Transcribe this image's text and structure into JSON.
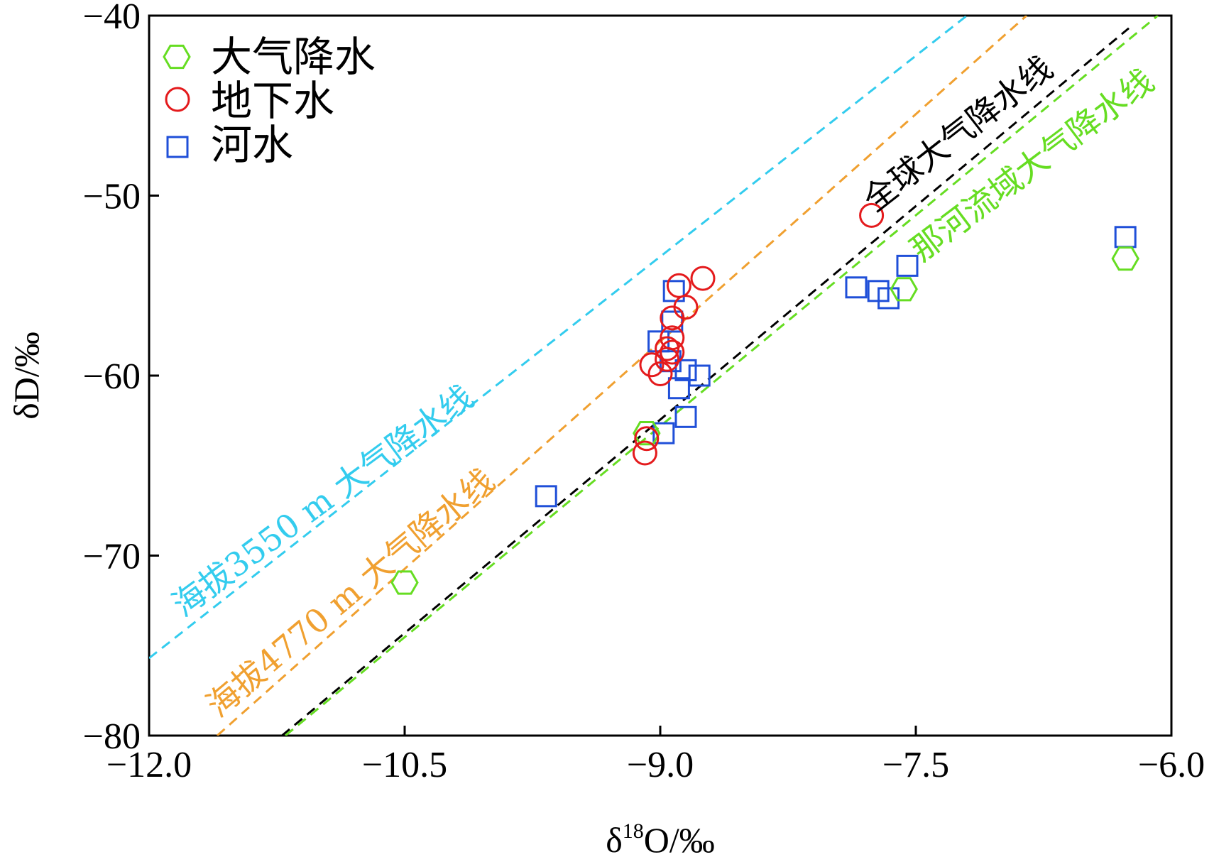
{
  "chart_data": {
    "type": "scatter",
    "xlabel": "δ¹⁸O/‰",
    "xlabel_main": "δ",
    "xlabel_sup": "18",
    "xlabel_rest": "O/‰",
    "ylabel": "δD/‰",
    "xlim": [
      -12.0,
      -6.0
    ],
    "ylim": [
      -80,
      -40
    ],
    "xticks": [
      -12.0,
      -10.5,
      -9.0,
      -7.5,
      -6.0
    ],
    "xtick_labels": [
      "−12.0",
      "−10.5",
      "−9.0",
      "−7.5",
      "−6.0"
    ],
    "yticks": [
      -80,
      -70,
      -60,
      -50,
      -40
    ],
    "ytick_labels": [
      "−80",
      "−70",
      "−60",
      "−50",
      "−40"
    ],
    "legend_position": "top-left",
    "series": [
      {
        "name": "大气降水",
        "marker": "hexagon",
        "color": "#66dd22",
        "points": [
          [
            -10.5,
            -71.5
          ],
          [
            -9.08,
            -63.2
          ],
          [
            -7.57,
            -55.2
          ],
          [
            -6.27,
            -53.5
          ]
        ]
      },
      {
        "name": "地下水",
        "marker": "circle",
        "color": "#e41a1c",
        "points": [
          [
            -7.76,
            -51.1
          ],
          [
            -8.75,
            -54.6
          ],
          [
            -8.89,
            -55.0
          ],
          [
            -8.85,
            -56.2
          ],
          [
            -8.93,
            -56.8
          ],
          [
            -8.93,
            -57.9
          ],
          [
            -8.93,
            -58.7
          ],
          [
            -8.96,
            -59.1
          ],
          [
            -8.96,
            -58.5
          ],
          [
            -9.05,
            -59.4
          ],
          [
            -9.0,
            -59.9
          ],
          [
            -9.08,
            -63.5
          ],
          [
            -9.09,
            -64.3
          ]
        ]
      },
      {
        "name": "河水",
        "marker": "square",
        "color": "#1f4fd8",
        "points": [
          [
            -6.27,
            -52.3
          ],
          [
            -7.55,
            -53.9
          ],
          [
            -7.66,
            -55.7
          ],
          [
            -7.72,
            -55.3
          ],
          [
            -7.85,
            -55.1
          ],
          [
            -8.92,
            -55.3
          ],
          [
            -8.93,
            -57.0
          ],
          [
            -9.01,
            -58.1
          ],
          [
            -8.94,
            -59.2
          ],
          [
            -8.85,
            -59.7
          ],
          [
            -8.77,
            -60.0
          ],
          [
            -8.89,
            -60.7
          ],
          [
            -8.85,
            -62.3
          ],
          [
            -8.98,
            -63.2
          ],
          [
            -9.67,
            -66.7
          ]
        ]
      }
    ],
    "lines": [
      {
        "name": "海拔3550 m 大气降水线",
        "color": "#33ccee",
        "x": [
          -12.0,
          -7.2
        ],
        "y": [
          -75.7,
          -40.0
        ]
      },
      {
        "name": "海拔4770 m 大气降水线",
        "color": "#f0a030",
        "x": [
          -11.6,
          -6.85
        ],
        "y": [
          -80.0,
          -40.0
        ]
      },
      {
        "name": "全球大气降水线",
        "color": "#000000",
        "x": [
          -11.22,
          -6.25
        ],
        "y": [
          -80.0,
          -40.7
        ]
      },
      {
        "name": "那河流域大气降水线",
        "color": "#66dd22",
        "x": [
          -11.2,
          -6.08
        ],
        "y": [
          -80.0,
          -40.0
        ]
      }
    ]
  }
}
